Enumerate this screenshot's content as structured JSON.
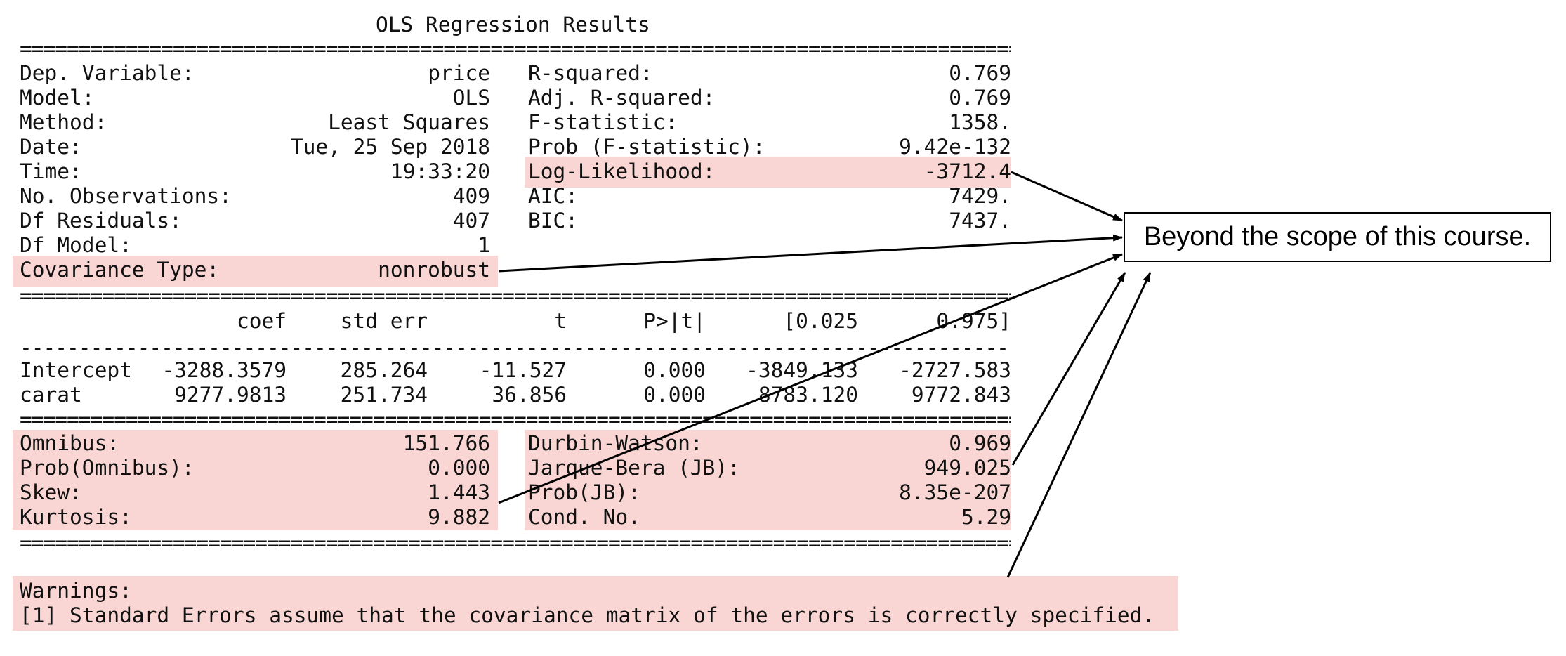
{
  "title": "OLS Regression Results",
  "rule_char": "=",
  "dash_char": "-",
  "summary_left": [
    {
      "label": "Dep. Variable:",
      "value": "price"
    },
    {
      "label": "Model:",
      "value": "OLS"
    },
    {
      "label": "Method:",
      "value": "Least Squares"
    },
    {
      "label": "Date:",
      "value": "Tue, 25 Sep 2018"
    },
    {
      "label": "Time:",
      "value": "19:33:20"
    },
    {
      "label": "No. Observations:",
      "value": "409"
    },
    {
      "label": "Df Residuals:",
      "value": "407"
    },
    {
      "label": "Df Model:",
      "value": "1"
    },
    {
      "label": "Covariance Type:",
      "value": "nonrobust"
    }
  ],
  "summary_right": [
    {
      "label": "R-squared:",
      "value": "0.769"
    },
    {
      "label": "Adj. R-squared:",
      "value": "0.769"
    },
    {
      "label": "F-statistic:",
      "value": "1358."
    },
    {
      "label": "Prob (F-statistic):",
      "value": "9.42e-132"
    },
    {
      "label": "Log-Likelihood:",
      "value": "-3712.4"
    },
    {
      "label": "AIC:",
      "value": "7429."
    },
    {
      "label": "BIC:",
      "value": "7437."
    }
  ],
  "coef_table": {
    "headers": [
      "coef",
      "std err",
      "t",
      "P>|t|",
      "[0.025",
      "0.975]"
    ],
    "rows": [
      {
        "name": "Intercept",
        "values": [
          "-3288.3579",
          "285.264",
          "-11.527",
          "0.000",
          "-3849.133",
          "-2727.583"
        ]
      },
      {
        "name": "carat",
        "values": [
          "9277.9813",
          "251.734",
          "36.856",
          "0.000",
          "8783.120",
          "9772.843"
        ]
      }
    ]
  },
  "diagnostics_left": [
    {
      "label": "Omnibus:",
      "value": "151.766"
    },
    {
      "label": "Prob(Omnibus):",
      "value": "0.000"
    },
    {
      "label": "Skew:",
      "value": "1.443"
    },
    {
      "label": "Kurtosis:",
      "value": "9.882"
    }
  ],
  "diagnostics_right": [
    {
      "label": "Durbin-Watson:",
      "value": "0.969"
    },
    {
      "label": "Jarque-Bera (JB):",
      "value": "949.025"
    },
    {
      "label": "Prob(JB):",
      "value": "8.35e-207"
    },
    {
      "label": "Cond. No.",
      "value": "5.29"
    }
  ],
  "warnings": {
    "heading": "Warnings:",
    "lines": [
      "[1] Standard Errors assume that the covariance matrix of the errors is correctly specified."
    ]
  },
  "callout": "Beyond the scope of this course.",
  "colors": {
    "highlight": "#f9d6d3",
    "text": "#111111",
    "arrow": "#000000"
  }
}
